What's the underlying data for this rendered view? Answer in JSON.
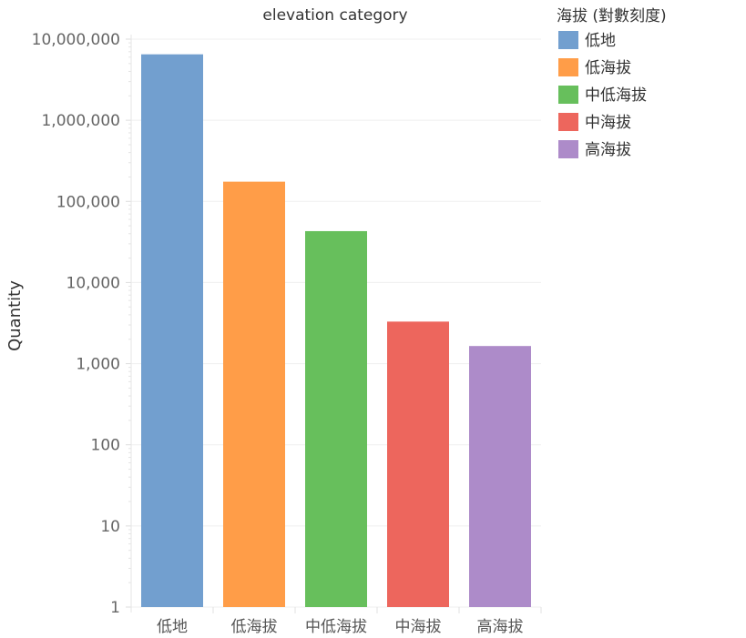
{
  "chart_data": {
    "type": "bar",
    "title": "elevation category",
    "xlabel": "",
    "ylabel": "Quantity",
    "yscale": "log",
    "ylim": [
      1,
      10000000
    ],
    "yticks": [
      "1",
      "10",
      "100",
      "1,000",
      "10,000",
      "100,000",
      "1,000,000",
      "10,000,000"
    ],
    "categories": [
      "低地",
      "低海拔",
      "中低海拔",
      "中海拔",
      "高海拔"
    ],
    "values": [
      6500000,
      175000,
      43000,
      3300,
      1650
    ],
    "colors": [
      "#729fcf",
      "#ff9d48",
      "#67bf5c",
      "#ed665d",
      "#ad8bc9"
    ],
    "grid": true,
    "legend": {
      "title": "海拔 (對數刻度)",
      "placement": "right",
      "entries": [
        "低地",
        "低海拔",
        "中低海拔",
        "中海拔",
        "高海拔"
      ]
    }
  }
}
